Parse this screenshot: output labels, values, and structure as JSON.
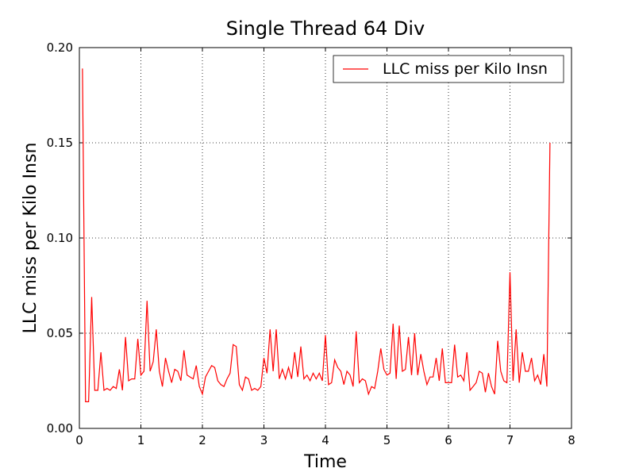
{
  "chart_data": {
    "type": "line",
    "title": "Single Thread 64 Div",
    "xlabel": "Time",
    "ylabel": "LLC miss per Kilo Insn",
    "x": [
      0.05,
      0.1,
      0.15,
      0.2,
      0.25,
      0.3,
      0.35,
      0.4,
      0.45,
      0.5,
      0.55,
      0.6,
      0.65,
      0.7,
      0.75,
      0.8,
      0.85,
      0.9,
      0.95,
      1.0,
      1.05,
      1.1,
      1.15,
      1.2,
      1.25,
      1.3,
      1.35,
      1.4,
      1.45,
      1.5,
      1.55,
      1.6,
      1.65,
      1.7,
      1.75,
      1.8,
      1.85,
      1.9,
      1.95,
      2.0,
      2.05,
      2.1,
      2.15,
      2.2,
      2.25,
      2.3,
      2.35,
      2.4,
      2.45,
      2.5,
      2.55,
      2.6,
      2.65,
      2.7,
      2.75,
      2.8,
      2.85,
      2.9,
      2.95,
      3.0,
      3.05,
      3.1,
      3.15,
      3.2,
      3.25,
      3.3,
      3.35,
      3.4,
      3.45,
      3.5,
      3.55,
      3.6,
      3.65,
      3.7,
      3.75,
      3.8,
      3.85,
      3.9,
      3.95,
      4.0,
      4.05,
      4.1,
      4.15,
      4.2,
      4.25,
      4.3,
      4.35,
      4.4,
      4.45,
      4.5,
      4.55,
      4.6,
      4.65,
      4.7,
      4.75,
      4.8,
      4.85,
      4.9,
      4.95,
      5.0,
      5.05,
      5.1,
      5.15,
      5.2,
      5.25,
      5.3,
      5.35,
      5.4,
      5.45,
      5.5,
      5.55,
      5.6,
      5.65,
      5.7,
      5.75,
      5.8,
      5.85,
      5.9,
      5.95,
      6.0,
      6.05,
      6.1,
      6.15,
      6.2,
      6.25,
      6.3,
      6.35,
      6.4,
      6.45,
      6.5,
      6.55,
      6.6,
      6.65,
      6.7,
      6.75,
      6.8,
      6.85,
      6.9,
      6.95,
      7.0,
      7.05,
      7.1,
      7.15,
      7.2,
      7.25,
      7.3,
      7.35,
      7.4,
      7.45,
      7.5,
      7.55,
      7.6,
      7.65
    ],
    "series": [
      {
        "name": "LLC miss per Kilo Insn",
        "color": "#ff0000",
        "values": [
          0.189,
          0.014,
          0.014,
          0.069,
          0.02,
          0.02,
          0.04,
          0.02,
          0.021,
          0.02,
          0.022,
          0.021,
          0.031,
          0.02,
          0.048,
          0.025,
          0.026,
          0.026,
          0.047,
          0.028,
          0.03,
          0.067,
          0.03,
          0.035,
          0.052,
          0.03,
          0.022,
          0.037,
          0.03,
          0.024,
          0.031,
          0.03,
          0.025,
          0.041,
          0.028,
          0.027,
          0.026,
          0.033,
          0.022,
          0.018,
          0.027,
          0.03,
          0.033,
          0.032,
          0.025,
          0.023,
          0.022,
          0.026,
          0.029,
          0.044,
          0.043,
          0.023,
          0.02,
          0.027,
          0.026,
          0.02,
          0.021,
          0.02,
          0.022,
          0.037,
          0.029,
          0.052,
          0.03,
          0.052,
          0.026,
          0.031,
          0.026,
          0.032,
          0.026,
          0.04,
          0.027,
          0.043,
          0.026,
          0.028,
          0.025,
          0.029,
          0.026,
          0.029,
          0.025,
          0.049,
          0.023,
          0.024,
          0.036,
          0.032,
          0.03,
          0.023,
          0.03,
          0.028,
          0.022,
          0.051,
          0.024,
          0.026,
          0.025,
          0.018,
          0.022,
          0.021,
          0.03,
          0.042,
          0.031,
          0.028,
          0.029,
          0.055,
          0.026,
          0.054,
          0.03,
          0.031,
          0.048,
          0.028,
          0.05,
          0.028,
          0.039,
          0.03,
          0.023,
          0.027,
          0.027,
          0.037,
          0.025,
          0.042,
          0.024,
          0.024,
          0.024,
          0.044,
          0.027,
          0.028,
          0.025,
          0.04,
          0.02,
          0.022,
          0.024,
          0.03,
          0.029,
          0.019,
          0.029,
          0.022,
          0.018,
          0.046,
          0.03,
          0.025,
          0.024,
          0.082,
          0.025,
          0.052,
          0.024,
          0.04,
          0.03,
          0.03,
          0.037,
          0.025,
          0.028,
          0.023,
          0.039,
          0.022,
          0.15
        ]
      }
    ],
    "xlim": [
      0,
      8
    ],
    "ylim": [
      0,
      0.2
    ],
    "xticks": [
      0,
      1,
      2,
      3,
      4,
      5,
      6,
      7,
      8
    ],
    "yticks": [
      {
        "value": 0,
        "label": "0.00"
      },
      0.05,
      {
        "value": 0.1,
        "label": "0.10"
      },
      0.15,
      {
        "value": 0.2,
        "label": "0.20"
      }
    ],
    "grid": true,
    "legend": "upper right"
  }
}
